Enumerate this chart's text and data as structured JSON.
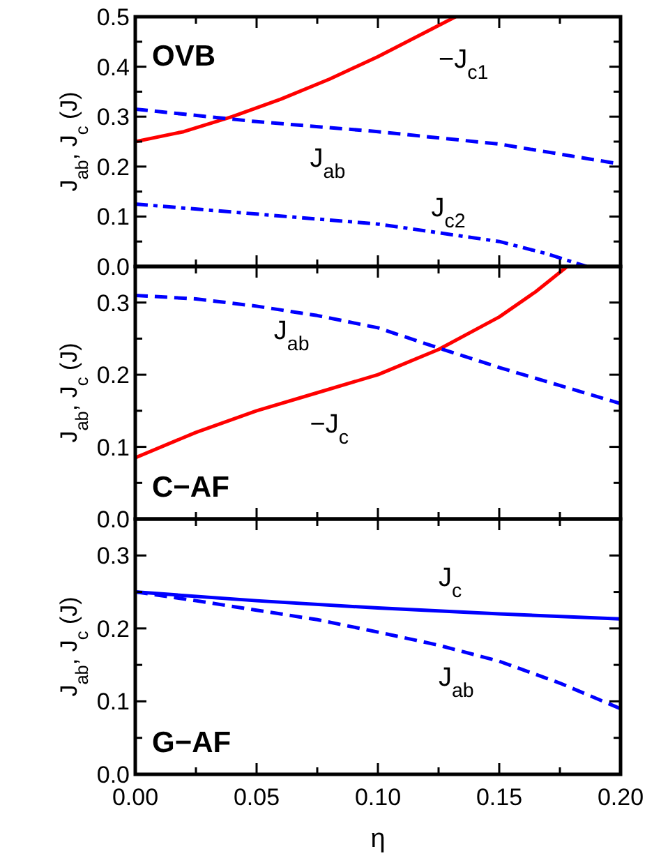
{
  "chart_data": [
    {
      "type": "line",
      "title": "OVB",
      "ylabel": "J$_{ab}$, J$_{c}$ (J)",
      "xlim": [
        0,
        0.2
      ],
      "ylim": [
        0,
        0.5
      ],
      "tick_labels": "y",
      "xticks": [
        {
          "value": 0,
          "label": null
        },
        {
          "value": 0.025,
          "label": null
        },
        {
          "value": 0.05,
          "label": null
        },
        {
          "value": 0.075,
          "label": null
        },
        {
          "value": 0.1,
          "label": null
        },
        {
          "value": 0.125,
          "label": null
        },
        {
          "value": 0.15,
          "label": null
        },
        {
          "value": 0.175,
          "label": null
        },
        {
          "value": 0.2,
          "label": null
        }
      ],
      "yticks": [
        {
          "value": 0,
          "label": "0.0"
        },
        {
          "value": 0.05,
          "label": null
        },
        {
          "value": 0.1,
          "label": "0.1"
        },
        {
          "value": 0.15,
          "label": null
        },
        {
          "value": 0.2,
          "label": "0.2"
        },
        {
          "value": 0.25,
          "label": null
        },
        {
          "value": 0.3,
          "label": "0.3"
        },
        {
          "value": 0.35,
          "label": null
        },
        {
          "value": 0.4,
          "label": "0.4"
        },
        {
          "value": 0.45,
          "label": null
        },
        {
          "value": 0.5,
          "label": "0.5"
        }
      ],
      "series": [
        {
          "name": "−J$_{c1}$",
          "color": "#ff0000",
          "line_style": "solid",
          "x": [
            0,
            0.02,
            0.04,
            0.06,
            0.08,
            0.1,
            0.12,
            0.132
          ],
          "values": [
            0.25,
            0.27,
            0.3,
            0.335,
            0.375,
            0.42,
            0.47,
            0.5
          ]
        },
        {
          "name": "J$_{ab}$",
          "color": "#0000ff",
          "line_style": "dashed",
          "x": [
            0,
            0.05,
            0.1,
            0.15,
            0.2
          ],
          "values": [
            0.315,
            0.29,
            0.27,
            0.245,
            0.205
          ]
        },
        {
          "name": "J$_{c2}$",
          "color": "#0000ff",
          "line_style": "dashdot",
          "x": [
            0,
            0.05,
            0.1,
            0.15,
            0.17,
            0.186
          ],
          "values": [
            0.125,
            0.105,
            0.085,
            0.05,
            0.025,
            0
          ]
        }
      ]
    },
    {
      "type": "line",
      "title": "C−AF",
      "ylabel": "J$_{ab}$, J$_{c}$ (J)",
      "xlim": [
        0,
        0.2
      ],
      "ylim": [
        0,
        0.35
      ],
      "tick_labels": "y",
      "xticks": [
        {
          "value": 0,
          "label": null
        },
        {
          "value": 0.025,
          "label": null
        },
        {
          "value": 0.05,
          "label": null
        },
        {
          "value": 0.075,
          "label": null
        },
        {
          "value": 0.1,
          "label": null
        },
        {
          "value": 0.125,
          "label": null
        },
        {
          "value": 0.15,
          "label": null
        },
        {
          "value": 0.175,
          "label": null
        },
        {
          "value": 0.2,
          "label": null
        }
      ],
      "yticks": [
        {
          "value": 0,
          "label": "0.0"
        },
        {
          "value": 0.05,
          "label": null
        },
        {
          "value": 0.1,
          "label": "0.1"
        },
        {
          "value": 0.15,
          "label": null
        },
        {
          "value": 0.2,
          "label": "0.2"
        },
        {
          "value": 0.25,
          "label": null
        },
        {
          "value": 0.3,
          "label": "0.3"
        }
      ],
      "series": [
        {
          "name": "−J$_{c}$",
          "color": "#ff0000",
          "line_style": "solid",
          "x": [
            0,
            0.025,
            0.05,
            0.075,
            0.1,
            0.125,
            0.15,
            0.165,
            0.178
          ],
          "values": [
            0.085,
            0.12,
            0.15,
            0.175,
            0.2,
            0.235,
            0.28,
            0.315,
            0.35
          ]
        },
        {
          "name": "J$_{ab}$",
          "color": "#0000ff",
          "line_style": "dashed",
          "x": [
            0,
            0.025,
            0.05,
            0.075,
            0.1,
            0.125,
            0.15,
            0.175,
            0.2
          ],
          "values": [
            0.31,
            0.305,
            0.295,
            0.282,
            0.265,
            0.237,
            0.21,
            0.185,
            0.16
          ]
        }
      ]
    },
    {
      "type": "line",
      "title": "G−AF",
      "ylabel": "J$_{ab}$, J$_{c}$ (J)",
      "xlabel": "η",
      "xlim": [
        0,
        0.2
      ],
      "ylim": [
        0,
        0.35
      ],
      "xticks": [
        {
          "value": 0,
          "label": "0.00"
        },
        {
          "value": 0.025,
          "label": null
        },
        {
          "value": 0.05,
          "label": "0.05"
        },
        {
          "value": 0.075,
          "label": null
        },
        {
          "value": 0.1,
          "label": "0.10"
        },
        {
          "value": 0.125,
          "label": null
        },
        {
          "value": 0.15,
          "label": "0.15"
        },
        {
          "value": 0.175,
          "label": null
        },
        {
          "value": 0.2,
          "label": "0.20"
        }
      ],
      "yticks": [
        {
          "value": 0,
          "label": "0.0"
        },
        {
          "value": 0.05,
          "label": null
        },
        {
          "value": 0.1,
          "label": "0.1"
        },
        {
          "value": 0.15,
          "label": null
        },
        {
          "value": 0.2,
          "label": "0.2"
        },
        {
          "value": 0.25,
          "label": null
        },
        {
          "value": 0.3,
          "label": "0.3"
        }
      ],
      "series": [
        {
          "name": "J$_{c}$",
          "color": "#0000ff",
          "line_style": "solid",
          "x": [
            0,
            0.05,
            0.1,
            0.15,
            0.2
          ],
          "values": [
            0.25,
            0.238,
            0.228,
            0.22,
            0.213
          ]
        },
        {
          "name": "J$_{ab}$",
          "color": "#0000ff",
          "line_style": "dashed",
          "x": [
            0,
            0.025,
            0.05,
            0.075,
            0.1,
            0.125,
            0.15,
            0.175,
            0.2
          ],
          "values": [
            0.25,
            0.238,
            0.225,
            0.212,
            0.195,
            0.177,
            0.155,
            0.125,
            0.09
          ]
        }
      ]
    }
  ]
}
